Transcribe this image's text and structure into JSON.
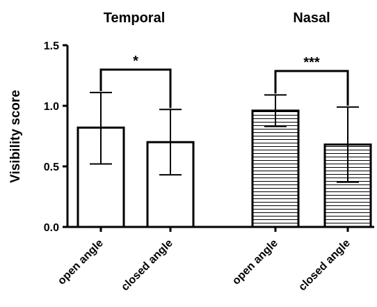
{
  "chart_data": {
    "type": "bar",
    "ylabel": "Visibility score",
    "ylim": [
      0,
      1.5
    ],
    "yticks": [
      "0.0",
      "0.5",
      "1.0",
      "1.5"
    ],
    "groups": [
      {
        "title": "Temporal",
        "significance": "*",
        "bars": [
          {
            "category": "open angle",
            "value": 0.82,
            "err_low": 0.52,
            "err_high": 1.11,
            "fill": "plain"
          },
          {
            "category": "closed angle",
            "value": 0.7,
            "err_low": 0.43,
            "err_high": 0.97,
            "fill": "plain"
          }
        ]
      },
      {
        "title": "Nasal",
        "significance": "***",
        "bars": [
          {
            "category": "open angle",
            "value": 0.96,
            "err_low": 0.83,
            "err_high": 1.09,
            "fill": "hatched"
          },
          {
            "category": "closed angle",
            "value": 0.68,
            "err_low": 0.37,
            "err_high": 0.99,
            "fill": "hatched"
          }
        ]
      }
    ],
    "grid": false,
    "legend": "none"
  },
  "colors": {
    "ink": "#000000",
    "bar_fill": "#ffffff"
  }
}
